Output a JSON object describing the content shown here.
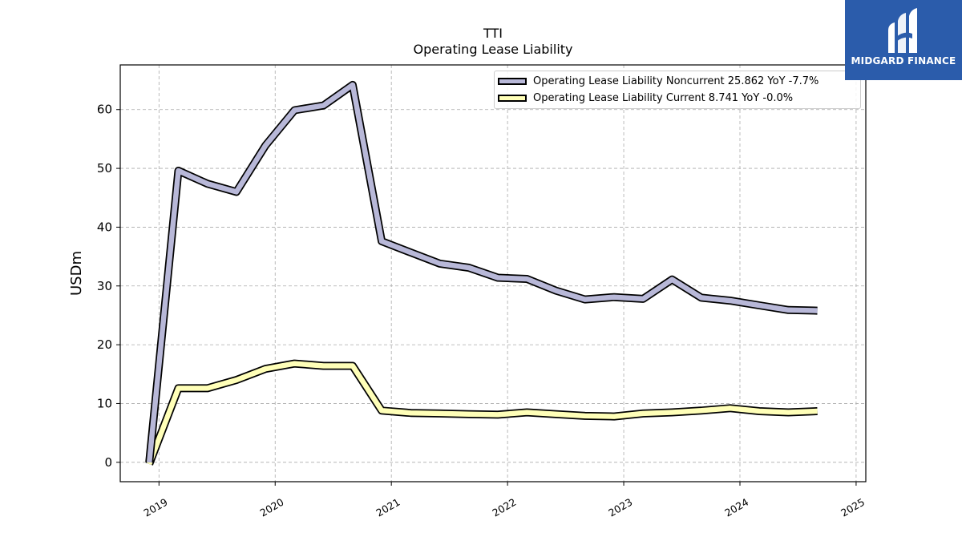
{
  "brand": {
    "name": "MIDGARD FINANCE",
    "background": "#2b5cab"
  },
  "chart_data": {
    "type": "line",
    "title": "TTI",
    "subtitle": "Operating Lease Liability",
    "xlabel": "",
    "ylabel": "USDm",
    "grid": true,
    "legend_position": "top-right",
    "x_ticks": [
      "2019",
      "2020",
      "2021",
      "2022",
      "2023",
      "2024",
      "2025"
    ],
    "y_ticks": [
      "0",
      "10",
      "20",
      "30",
      "40",
      "50",
      "60"
    ],
    "ylim": [
      -3.3,
      67.6
    ],
    "xlim": [
      "2018-09",
      "2025-02"
    ],
    "x": [
      "2018-12",
      "2019-03",
      "2019-06",
      "2019-09",
      "2019-12",
      "2020-03",
      "2020-06",
      "2020-09",
      "2020-12",
      "2021-03",
      "2021-06",
      "2021-09",
      "2021-12",
      "2022-03",
      "2022-06",
      "2022-09",
      "2022-12",
      "2023-03",
      "2023-06",
      "2023-09",
      "2023-12",
      "2024-03",
      "2024-06",
      "2024-09"
    ],
    "series": [
      {
        "name": "Operating Lease Liability Noncurrent",
        "legend_label": "Operating Lease Liability Noncurrent  25.862 YoY -7.7%",
        "color": "#b8b8d8",
        "values": [
          0.0,
          49.6,
          47.4,
          46.0,
          53.9,
          59.9,
          60.7,
          64.2,
          37.6,
          35.7,
          33.8,
          33.1,
          31.4,
          31.2,
          29.2,
          27.7,
          28.1,
          27.8,
          31.1,
          28.0,
          27.5,
          26.7,
          25.9,
          25.8
        ]
      },
      {
        "name": "Operating Lease Liability Current",
        "legend_label": "Operating Lease Liability Current  8.741 YoY -0.0%",
        "color": "#ffffb8",
        "values": [
          -0.3,
          12.6,
          12.6,
          14.0,
          15.9,
          16.8,
          16.4,
          16.4,
          8.8,
          8.4,
          8.3,
          8.2,
          8.1,
          8.5,
          8.2,
          7.9,
          7.8,
          8.3,
          8.5,
          8.8,
          9.2,
          8.7,
          8.5,
          8.7
        ]
      }
    ]
  }
}
